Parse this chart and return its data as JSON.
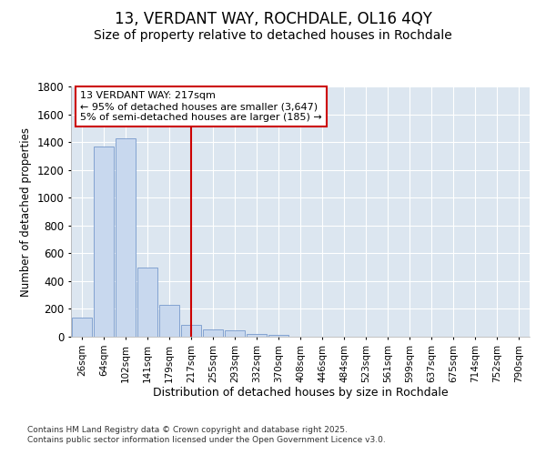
{
  "title1": "13, VERDANT WAY, ROCHDALE, OL16 4QY",
  "title2": "Size of property relative to detached houses in Rochdale",
  "xlabel": "Distribution of detached houses by size in Rochdale",
  "ylabel": "Number of detached properties",
  "categories": [
    "26sqm",
    "64sqm",
    "102sqm",
    "141sqm",
    "179sqm",
    "217sqm",
    "255sqm",
    "293sqm",
    "332sqm",
    "370sqm",
    "408sqm",
    "446sqm",
    "484sqm",
    "523sqm",
    "561sqm",
    "599sqm",
    "637sqm",
    "675sqm",
    "714sqm",
    "752sqm",
    "790sqm"
  ],
  "values": [
    140,
    1370,
    1430,
    500,
    230,
    85,
    55,
    45,
    20,
    15,
    0,
    0,
    0,
    0,
    0,
    0,
    0,
    0,
    0,
    0,
    0
  ],
  "bar_color": "#c8d8ee",
  "bar_edge_color": "#7799cc",
  "vline_x_index": 5,
  "vline_color": "#cc0000",
  "annotation_text": "13 VERDANT WAY: 217sqm\n← 95% of detached houses are smaller (3,647)\n5% of semi-detached houses are larger (185) →",
  "annotation_box_color": "#cc0000",
  "ylim": [
    0,
    1800
  ],
  "yticks": [
    0,
    200,
    400,
    600,
    800,
    1000,
    1200,
    1400,
    1600,
    1800
  ],
  "background_color": "#dce6f0",
  "footer_text": "Contains HM Land Registry data © Crown copyright and database right 2025.\nContains public sector information licensed under the Open Government Licence v3.0.",
  "title_fontsize": 12,
  "subtitle_fontsize": 10
}
